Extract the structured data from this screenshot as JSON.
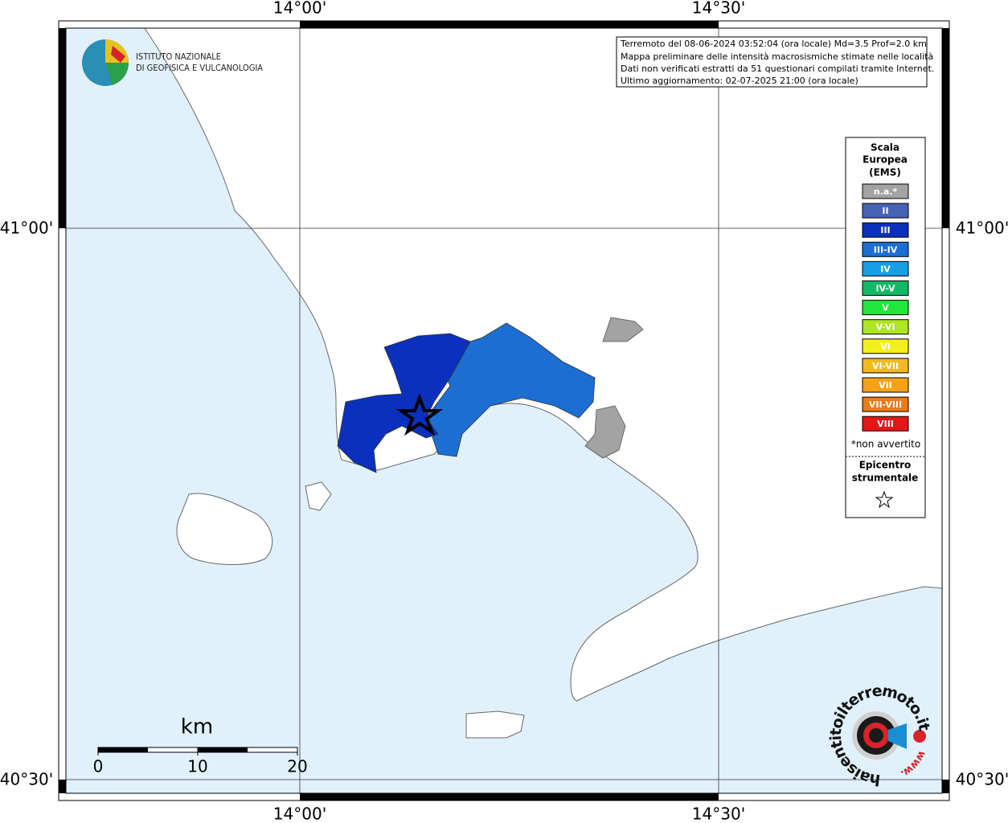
{
  "header": {
    "lines": [
      "Terremoto del 08-06-2024 03:52:04 (ora locale) Md=3.5 Prof=2.0 km",
      "Mappa preliminare delle intensità macrosismiche stimate nelle località",
      "Dati non verificati estratti da 51 questionari compilati tramite Internet.",
      "Ultimo aggiornamento: 02-07-2025 21:00 (ora locale)"
    ]
  },
  "axes": {
    "lon": [
      "14°00'",
      "14°30'"
    ],
    "lat": [
      "41°00'",
      "40°30'"
    ]
  },
  "logo": {
    "lines": [
      "ISTITUTO NAZIONALE",
      "DI GEOFISICA E VULCANOLOGIA"
    ]
  },
  "legend": {
    "title": [
      "Scala",
      "Europea",
      "(EMS)"
    ],
    "classes": [
      {
        "label": "n.a.*",
        "color": "#a3a3a3"
      },
      {
        "label": "II",
        "color": "#4863b3"
      },
      {
        "label": "III",
        "color": "#0b30bd"
      },
      {
        "label": "III-IV",
        "color": "#1c6ed2"
      },
      {
        "label": "IV",
        "color": "#169fe6"
      },
      {
        "label": "IV-V",
        "color": "#13b866"
      },
      {
        "label": "V",
        "color": "#22e63a"
      },
      {
        "label": "V-VI",
        "color": "#aee61f"
      },
      {
        "label": "VI",
        "color": "#f3ef1c"
      },
      {
        "label": "VI-VII",
        "color": "#f6b91c"
      },
      {
        "label": "VII",
        "color": "#f6a116"
      },
      {
        "label": "VII-VIII",
        "color": "#f07a16"
      },
      {
        "label": "VIII",
        "color": "#e61616"
      }
    ],
    "note": "*non avvertito",
    "epicenter": [
      "Epicentro",
      "strumentale"
    ]
  },
  "scale_bar": {
    "unit": "km",
    "ticks": [
      "0",
      "10",
      "20"
    ]
  },
  "watermark": {
    "site": "haisentitoilterremoto.it",
    "prefix": "www."
  }
}
